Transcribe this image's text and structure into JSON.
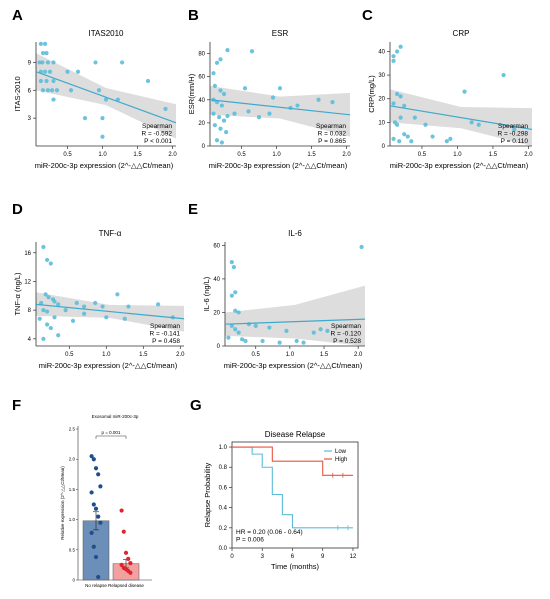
{
  "figure": {
    "colors": {
      "point": "#5bbcd9",
      "line": "#3fa9cc",
      "band": "#d7d7d7",
      "low": "#5bbcd9",
      "high": "#e8553f",
      "no_relapse_bar": "#6b8fb8",
      "no_relapse_dot": "#1f4e8c",
      "relapsed_bar": "#f2a0a0",
      "relapsed_dot": "#e0242c"
    }
  },
  "chart_data": [
    {
      "panel": "A",
      "type": "scatter",
      "title": "ITAS2010",
      "xlabel": "miR-200c-3p expression (2^-△△Ct/mean)",
      "ylabel": "ITAS-2010",
      "xlim": [
        0.05,
        2.05
      ],
      "ylim": [
        0,
        11.2
      ],
      "xticks": [
        0.5,
        1.0,
        1.5,
        2.0
      ],
      "xtick_labels": [
        "0.5",
        "1.0",
        "1.5",
        "2.0"
      ],
      "yticks": [
        3,
        6,
        9
      ],
      "ytick_labels": [
        "3",
        "6",
        "9"
      ],
      "stat_lines": [
        "Spearman",
        "R = -0.592",
        "P < 0.001"
      ],
      "fit": {
        "y0": 8.0,
        "y1": 2.5,
        "lo0": 6.0,
        "hi0": 10.0,
        "lo1": 0.8,
        "hi1": 4.5
      },
      "points": [
        [
          0.12,
          11
        ],
        [
          0.18,
          11
        ],
        [
          0.15,
          10
        ],
        [
          0.2,
          10
        ],
        [
          0.1,
          9
        ],
        [
          0.14,
          9
        ],
        [
          0.22,
          9
        ],
        [
          0.3,
          9
        ],
        [
          0.12,
          8
        ],
        [
          0.18,
          8
        ],
        [
          0.25,
          8
        ],
        [
          0.3,
          7
        ],
        [
          0.12,
          7
        ],
        [
          0.2,
          7
        ],
        [
          0.15,
          6
        ],
        [
          0.22,
          6
        ],
        [
          0.28,
          6
        ],
        [
          0.35,
          6
        ],
        [
          0.55,
          6
        ],
        [
          0.5,
          8
        ],
        [
          0.65,
          8
        ],
        [
          0.9,
          9
        ],
        [
          0.95,
          6
        ],
        [
          1.05,
          5
        ],
        [
          1.28,
          9
        ],
        [
          1.0,
          3
        ],
        [
          1.22,
          5
        ],
        [
          1.65,
          7
        ],
        [
          1.9,
          4
        ],
        [
          0.3,
          5
        ],
        [
          0.75,
          3
        ],
        [
          1.0,
          1
        ]
      ]
    },
    {
      "panel": "B",
      "type": "scatter",
      "title": "ESR",
      "xlabel": "miR-200c-3p expression (2^-△△Ct/mean)",
      "ylabel": "ESR(mm/H)",
      "xlim": [
        0.05,
        2.05
      ],
      "ylim": [
        0,
        90
      ],
      "xticks": [
        0.5,
        1.0,
        1.5,
        2.0
      ],
      "xtick_labels": [
        "0.5",
        "1.0",
        "1.5",
        "2.0"
      ],
      "yticks": [
        0,
        20,
        40,
        60,
        80
      ],
      "ytick_labels": [
        "0",
        "20",
        "40",
        "60",
        "80"
      ],
      "stat_lines": [
        "Spearman",
        "R = 0.032",
        "P = 0.865"
      ],
      "fit": {
        "y0": 40,
        "y1": 27,
        "lo0": 27,
        "hi0": 52,
        "lo1": 8,
        "hi1": 46
      },
      "points": [
        [
          0.1,
          63
        ],
        [
          0.15,
          72
        ],
        [
          0.2,
          75
        ],
        [
          0.3,
          83
        ],
        [
          0.12,
          52
        ],
        [
          0.2,
          48
        ],
        [
          0.25,
          45
        ],
        [
          0.1,
          40
        ],
        [
          0.15,
          38
        ],
        [
          0.22,
          35
        ],
        [
          0.1,
          28
        ],
        [
          0.18,
          25
        ],
        [
          0.25,
          22
        ],
        [
          0.12,
          18
        ],
        [
          0.2,
          15
        ],
        [
          0.28,
          12
        ],
        [
          0.15,
          5
        ],
        [
          0.22,
          3
        ],
        [
          0.4,
          28
        ],
        [
          0.55,
          50
        ],
        [
          0.65,
          82
        ],
        [
          0.6,
          30
        ],
        [
          0.75,
          25
        ],
        [
          0.9,
          28
        ],
        [
          0.95,
          42
        ],
        [
          1.05,
          50
        ],
        [
          1.2,
          33
        ],
        [
          1.3,
          35
        ],
        [
          1.6,
          40
        ],
        [
          1.8,
          38
        ],
        [
          0.3,
          26
        ]
      ]
    },
    {
      "panel": "C",
      "type": "scatter",
      "title": "CRP",
      "xlabel": "miR-200c-3p expression (2^-△△Ct/mean)",
      "ylabel": "CRP(mg/L)",
      "xlim": [
        0.05,
        2.05
      ],
      "ylim": [
        0,
        44
      ],
      "xticks": [
        0.5,
        1.0,
        1.5,
        2.0
      ],
      "xtick_labels": [
        "0.5",
        "1.0",
        "1.5",
        "2.0"
      ],
      "yticks": [
        0,
        10,
        20,
        30,
        40
      ],
      "ytick_labels": [
        "0",
        "10",
        "20",
        "30",
        "40"
      ],
      "stat_lines": [
        "Spearman",
        "R = -0.298",
        "P = 0.110"
      ],
      "fit": {
        "y0": 17,
        "y1": 7,
        "lo0": 10,
        "hi0": 24,
        "lo1": -2,
        "hi1": 16
      },
      "points": [
        [
          0.1,
          38
        ],
        [
          0.15,
          40
        ],
        [
          0.2,
          42
        ],
        [
          0.1,
          36
        ],
        [
          0.15,
          22
        ],
        [
          0.2,
          21
        ],
        [
          0.1,
          18
        ],
        [
          0.25,
          17
        ],
        [
          0.12,
          10
        ],
        [
          0.2,
          12
        ],
        [
          0.15,
          9
        ],
        [
          0.25,
          5
        ],
        [
          0.3,
          4
        ],
        [
          0.1,
          3
        ],
        [
          0.18,
          2
        ],
        [
          0.35,
          2
        ],
        [
          0.4,
          12
        ],
        [
          0.55,
          9
        ],
        [
          0.65,
          4
        ],
        [
          0.85,
          2
        ],
        [
          0.9,
          3
        ],
        [
          1.1,
          23
        ],
        [
          1.2,
          10
        ],
        [
          1.3,
          9
        ],
        [
          1.65,
          30
        ],
        [
          1.8,
          7
        ]
      ]
    },
    {
      "panel": "D",
      "type": "scatter",
      "title": "TNF-α",
      "xlabel": "miR-200c-3p expression (2^-△△Ct/mean)",
      "ylabel": "TNF-α (ng/L)",
      "xlim": [
        0.05,
        2.05
      ],
      "ylim": [
        3,
        17.5
      ],
      "xticks": [
        0.5,
        1.0,
        1.5,
        2.0
      ],
      "xtick_labels": [
        "0.5",
        "1.0",
        "1.5",
        "2.0"
      ],
      "yticks": [
        4,
        8,
        12,
        16
      ],
      "ytick_labels": [
        "4",
        "8",
        "12",
        "16"
      ],
      "stat_lines": [
        "Spearman",
        "R = -0.141",
        "P = 0.458"
      ],
      "fit": {
        "y0": 8.8,
        "y1": 6.8,
        "lo0": 7.2,
        "hi0": 10.5,
        "lo1": 5.0,
        "hi1": 8.6
      },
      "points": [
        [
          0.15,
          16.8
        ],
        [
          0.2,
          15
        ],
        [
          0.25,
          14.5
        ],
        [
          0.18,
          10.2
        ],
        [
          0.22,
          9.8
        ],
        [
          0.28,
          9.5
        ],
        [
          0.12,
          9
        ],
        [
          0.3,
          9.2
        ],
        [
          0.35,
          8.8
        ],
        [
          0.15,
          8
        ],
        [
          0.2,
          7.8
        ],
        [
          0.45,
          8
        ],
        [
          0.1,
          6.8
        ],
        [
          0.3,
          7
        ],
        [
          0.2,
          6
        ],
        [
          0.25,
          5.5
        ],
        [
          0.35,
          4.5
        ],
        [
          0.15,
          4
        ],
        [
          0.6,
          9
        ],
        [
          0.7,
          8.5
        ],
        [
          0.85,
          9
        ],
        [
          0.95,
          8.5
        ],
        [
          1.0,
          7
        ],
        [
          1.15,
          10.2
        ],
        [
          1.3,
          8.5
        ],
        [
          1.7,
          8.8
        ],
        [
          1.9,
          7
        ],
        [
          0.7,
          7.5
        ],
        [
          0.55,
          6.5
        ],
        [
          1.25,
          6.8
        ]
      ]
    },
    {
      "panel": "E",
      "type": "scatter",
      "title": "IL-6",
      "xlabel": "miR-200c-3p expression (2^-△△Ct/mean)",
      "ylabel": "IL-6 (ng/L)",
      "xlim": [
        0.05,
        2.1
      ],
      "ylim": [
        0,
        62
      ],
      "xticks": [
        0.5,
        1.0,
        1.5,
        2.0
      ],
      "xtick_labels": [
        "0.5",
        "1.0",
        "1.5",
        "2.0"
      ],
      "yticks": [
        0,
        20,
        40,
        60
      ],
      "ytick_labels": [
        "0",
        "20",
        "40",
        "60"
      ],
      "stat_lines": [
        "Spearman",
        "R = -0.120",
        "P = 0.528"
      ],
      "fit": {
        "y0": 13,
        "y1": 16,
        "lo0": 6,
        "hi0": 20,
        "lo1": -4,
        "hi1": 36
      },
      "points": [
        [
          0.15,
          50
        ],
        [
          0.18,
          47
        ],
        [
          0.2,
          32
        ],
        [
          0.15,
          30
        ],
        [
          0.2,
          21
        ],
        [
          0.25,
          20
        ],
        [
          0.15,
          12
        ],
        [
          0.2,
          10
        ],
        [
          0.25,
          8
        ],
        [
          0.1,
          5
        ],
        [
          0.3,
          4
        ],
        [
          0.35,
          3
        ],
        [
          0.4,
          13
        ],
        [
          0.5,
          12
        ],
        [
          0.6,
          3
        ],
        [
          0.7,
          11
        ],
        [
          0.85,
          2
        ],
        [
          0.95,
          9
        ],
        [
          1.1,
          3
        ],
        [
          1.2,
          2
        ],
        [
          1.35,
          8
        ],
        [
          1.45,
          10
        ],
        [
          1.55,
          9
        ],
        [
          2.05,
          59
        ]
      ]
    },
    {
      "panel": "F",
      "type": "bar",
      "title": "Exosomal miR-200c-3p",
      "ylabel": "Relative expression (2^-△△Ct/Mean)",
      "categories": [
        "No relapse",
        "Relapsed disease"
      ],
      "values": [
        0.98,
        0.27
      ],
      "errors": [
        0.15,
        0.07
      ],
      "ylim": [
        0,
        2.55
      ],
      "yticks": [
        0,
        0.5,
        1.0,
        1.5,
        2.0,
        2.5
      ],
      "ytick_labels": [
        "0",
        "0.5",
        "1.0",
        "1.5",
        "2.0",
        "2.5"
      ],
      "significance": "p = 0.001",
      "points": [
        [
          2.05,
          2.0,
          1.85,
          1.75,
          1.55,
          1.45,
          1.25,
          1.18,
          1.05,
          0.95,
          0.78,
          0.55,
          0.38,
          0.05
        ],
        [
          1.15,
          0.8,
          0.45,
          0.35,
          0.28,
          0.25,
          0.2,
          0.18,
          0.15,
          0.12
        ]
      ]
    },
    {
      "panel": "G",
      "type": "line",
      "title": "Disease Relapse",
      "xlabel": "Time (months)",
      "ylabel": "Relapse Probability",
      "xlim": [
        0,
        12.5
      ],
      "ylim": [
        0,
        1.05
      ],
      "xticks": [
        0,
        3,
        6,
        9,
        12
      ],
      "xtick_labels": [
        "0",
        "3",
        "6",
        "9",
        "12"
      ],
      "yticks": [
        0,
        0.2,
        0.4,
        0.6,
        0.8,
        1.0
      ],
      "ytick_labels": [
        "0.0",
        "0.2",
        "0.4",
        "0.6",
        "0.8",
        "1.0"
      ],
      "legend": [
        "Low",
        "High"
      ],
      "stat_lines": [
        "HR = 0.20 (0.06 - 0.64)",
        "P = 0.006"
      ],
      "series": [
        {
          "name": "Low",
          "steps": [
            [
              0,
              1.0
            ],
            [
              2,
              0.93
            ],
            [
              3,
              0.8
            ],
            [
              4,
              0.53
            ],
            [
              5,
              0.33
            ],
            [
              6,
              0.2
            ],
            [
              9,
              0.2
            ],
            [
              12,
              0.2
            ]
          ],
          "censor": [
            [
              10.5,
              0.2
            ],
            [
              11.5,
              0.2
            ]
          ]
        },
        {
          "name": "High",
          "steps": [
            [
              0,
              1.0
            ],
            [
              4,
              0.86
            ],
            [
              9,
              0.72
            ],
            [
              12,
              0.72
            ]
          ],
          "censor": [
            [
              10,
              0.72
            ],
            [
              11,
              0.72
            ]
          ]
        }
      ]
    }
  ]
}
